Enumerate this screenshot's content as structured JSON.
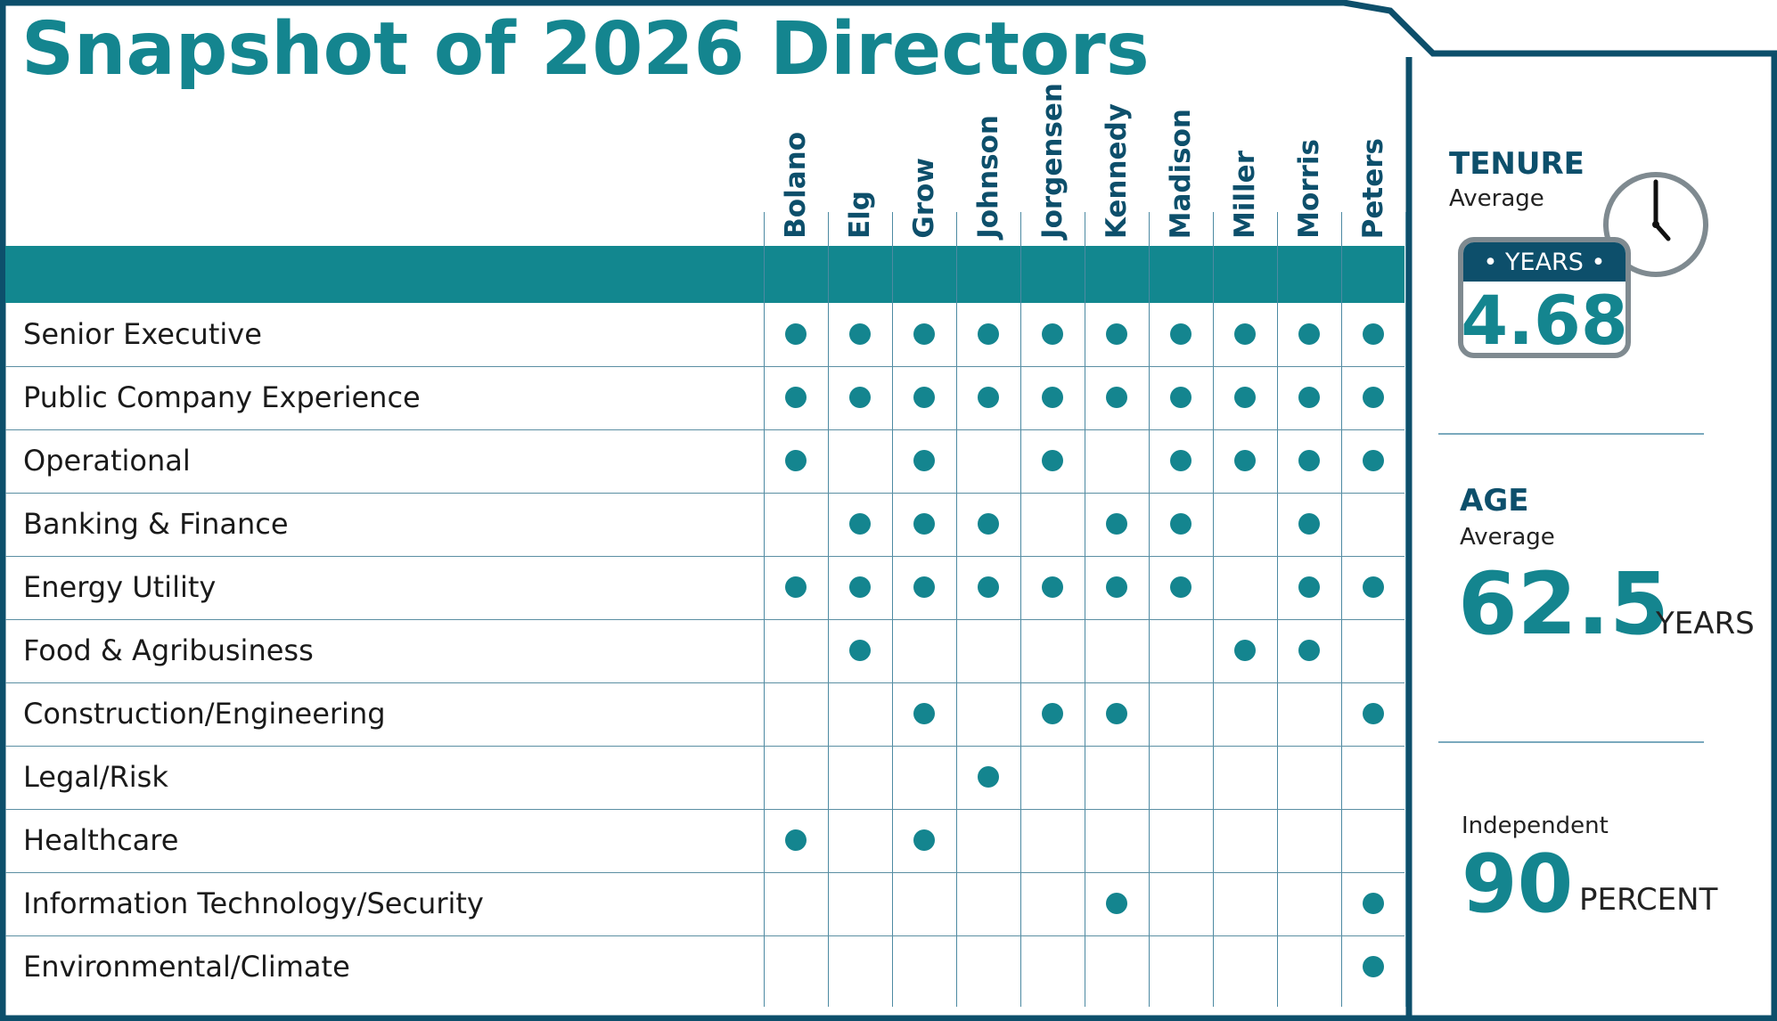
{
  "title": "Snapshot of 2026 Directors",
  "directors": [
    "Bolano",
    "Elg",
    "Grow",
    "Johnson",
    "Jorgensen",
    "Kennedy",
    "Madison",
    "Miller",
    "Morris",
    "Peters"
  ],
  "skills": [
    {
      "label": "Senior Executive",
      "has": [
        1,
        1,
        1,
        1,
        1,
        1,
        1,
        1,
        1,
        1
      ]
    },
    {
      "label": "Public Company Experience",
      "has": [
        1,
        1,
        1,
        1,
        1,
        1,
        1,
        1,
        1,
        1
      ]
    },
    {
      "label": "Operational",
      "has": [
        1,
        0,
        1,
        0,
        1,
        0,
        1,
        1,
        1,
        1
      ]
    },
    {
      "label": "Banking & Finance",
      "has": [
        0,
        1,
        1,
        1,
        0,
        1,
        1,
        0,
        1,
        0
      ]
    },
    {
      "label": "Energy Utility",
      "has": [
        1,
        1,
        1,
        1,
        1,
        1,
        1,
        0,
        1,
        1
      ]
    },
    {
      "label": "Food & Agribusiness",
      "has": [
        0,
        1,
        0,
        0,
        0,
        0,
        0,
        1,
        1,
        0
      ]
    },
    {
      "label": "Construction/Engineering",
      "has": [
        0,
        0,
        1,
        0,
        1,
        1,
        0,
        0,
        0,
        1
      ]
    },
    {
      "label": "Legal/Risk",
      "has": [
        0,
        0,
        0,
        1,
        0,
        0,
        0,
        0,
        0,
        0
      ]
    },
    {
      "label": "Healthcare",
      "has": [
        1,
        0,
        1,
        0,
        0,
        0,
        0,
        0,
        0,
        0
      ]
    },
    {
      "label": "Information Technology/Security",
      "has": [
        0,
        0,
        0,
        0,
        0,
        1,
        0,
        0,
        0,
        1
      ]
    },
    {
      "label": "Environmental/Climate",
      "has": [
        0,
        0,
        0,
        0,
        0,
        0,
        0,
        0,
        0,
        1
      ]
    }
  ],
  "tenure": {
    "heading": "TENURE",
    "sub": "Average",
    "badge": "• YEARS •",
    "value": "4.68",
    "icons": [
      "calendar-icon",
      "clock-icon"
    ]
  },
  "age": {
    "heading": "AGE",
    "sub": "Average",
    "value": "62.5",
    "unit": "YEARS"
  },
  "independent": {
    "sub": "Independent",
    "value": "90",
    "unit": "PERCENT"
  },
  "colors": {
    "teal": "#14858f",
    "navy": "#0d4f6b",
    "band": "#12878f",
    "gray": "#7f8a90"
  }
}
